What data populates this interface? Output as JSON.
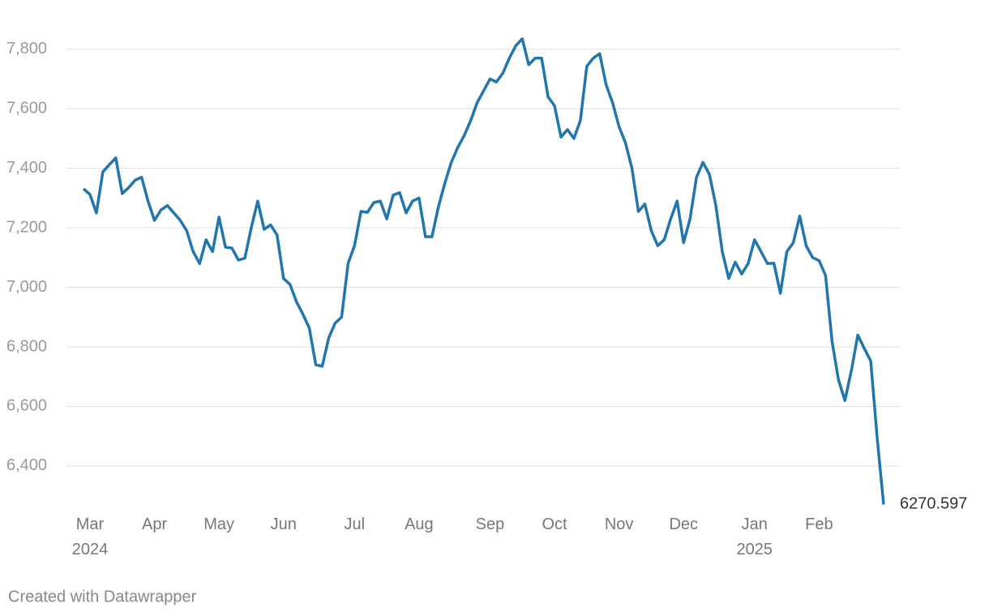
{
  "chart_data": {
    "type": "line",
    "credit": "Created with Datawrapper",
    "color": "#2176ae",
    "categories": [
      null,
      "Mar 2024",
      null,
      null,
      null,
      null,
      null,
      null,
      null,
      null,
      null,
      "Apr",
      null,
      null,
      null,
      null,
      null,
      null,
      null,
      null,
      null,
      "May",
      null,
      null,
      null,
      null,
      null,
      null,
      null,
      null,
      null,
      "Jun",
      null,
      null,
      null,
      null,
      null,
      null,
      null,
      null,
      null,
      null,
      "Jul",
      null,
      null,
      null,
      null,
      null,
      null,
      null,
      null,
      null,
      "Aug",
      null,
      null,
      null,
      null,
      null,
      null,
      null,
      null,
      null,
      null,
      "Sep",
      null,
      null,
      null,
      null,
      null,
      null,
      null,
      null,
      null,
      "Oct",
      null,
      null,
      null,
      null,
      null,
      null,
      null,
      null,
      null,
      "Nov",
      null,
      null,
      null,
      null,
      null,
      null,
      null,
      null,
      null,
      "Dec",
      null,
      null,
      null,
      null,
      null,
      null,
      null,
      null,
      null,
      null,
      "Jan 2025",
      null,
      null,
      null,
      null,
      null,
      null,
      null,
      null,
      null,
      "Feb",
      null,
      null,
      null,
      null,
      null,
      null,
      null,
      null,
      null,
      null
    ],
    "values": [
      7331,
      7312,
      7250,
      7388,
      7412,
      7435,
      7315,
      7335,
      7360,
      7370,
      7290,
      7225,
      7260,
      7275,
      7250,
      7225,
      7190,
      7120,
      7080,
      7160,
      7120,
      7236,
      7135,
      7132,
      7092,
      7098,
      7200,
      7290,
      7195,
      7210,
      7176,
      7030,
      7010,
      6952,
      6910,
      6863,
      6740,
      6735,
      6830,
      6880,
      6900,
      7080,
      7140,
      7255,
      7252,
      7285,
      7290,
      7230,
      7310,
      7318,
      7250,
      7290,
      7300,
      7170,
      7170,
      7270,
      7350,
      7420,
      7470,
      7510,
      7560,
      7620,
      7660,
      7700,
      7690,
      7720,
      7770,
      7812,
      7835,
      7748,
      7770,
      7770,
      7640,
      7610,
      7505,
      7530,
      7500,
      7560,
      7743,
      7770,
      7785,
      7680,
      7620,
      7540,
      7485,
      7400,
      7255,
      7280,
      7190,
      7140,
      7160,
      7230,
      7290,
      7150,
      7230,
      7370,
      7420,
      7380,
      7275,
      7120,
      7030,
      7085,
      7045,
      7080,
      7160,
      7120,
      7080,
      7081,
      6980,
      7120,
      7150,
      7240,
      7140,
      7100,
      7090,
      7040,
      6820,
      6690,
      6620,
      6720,
      6840,
      6795,
      6753,
      6495,
      6270.597
    ],
    "ylim": [
      6250,
      7900
    ],
    "yticks": [
      {
        "value": 6400,
        "label": "6,400"
      },
      {
        "value": 6600,
        "label": "6,600"
      },
      {
        "value": 6800,
        "label": "6,800"
      },
      {
        "value": 7000,
        "label": "7,000"
      },
      {
        "value": 7200,
        "label": "7,200"
      },
      {
        "value": 7400,
        "label": "7,400"
      },
      {
        "value": 7600,
        "label": "7,600"
      },
      {
        "value": 7800,
        "label": "7,800"
      }
    ],
    "grid": true,
    "end_label": true
  }
}
